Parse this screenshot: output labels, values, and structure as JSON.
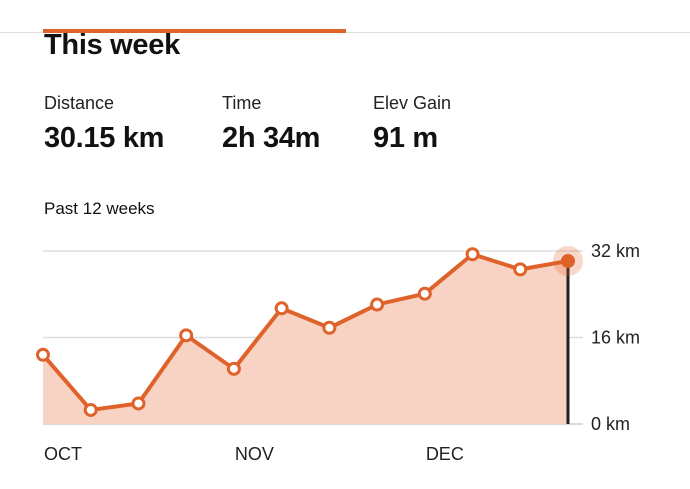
{
  "header": {
    "title": "This week"
  },
  "stats": [
    {
      "label": "Distance",
      "value": "30.15 km"
    },
    {
      "label": "Time",
      "value": "2h 34m"
    },
    {
      "label": "Elev Gain",
      "value": "91 m"
    }
  ],
  "chart": {
    "subtitle": "Past 12 weeks"
  },
  "colors": {
    "accent": "#e0622b",
    "fill": "#f8d3c3",
    "grid": "#dddddd"
  },
  "chart_data": {
    "type": "area",
    "title": "Past 12 weeks",
    "xlabel": "",
    "ylabel": "",
    "x_tick_labels": [
      "OCT",
      "NOV",
      "DEC"
    ],
    "y_tick_labels": [
      "32 km",
      "16 km",
      "0 km"
    ],
    "y_ticks": [
      32,
      16,
      0
    ],
    "ylim": [
      0,
      32
    ],
    "grid": true,
    "legend": "none",
    "series": [
      {
        "values": [
          12.8,
          2.6,
          3.8,
          16.4,
          10.2,
          21.4,
          17.8,
          22.1,
          24.1,
          31.4,
          28.6,
          30.15
        ]
      }
    ],
    "highlighted_index": 11
  }
}
